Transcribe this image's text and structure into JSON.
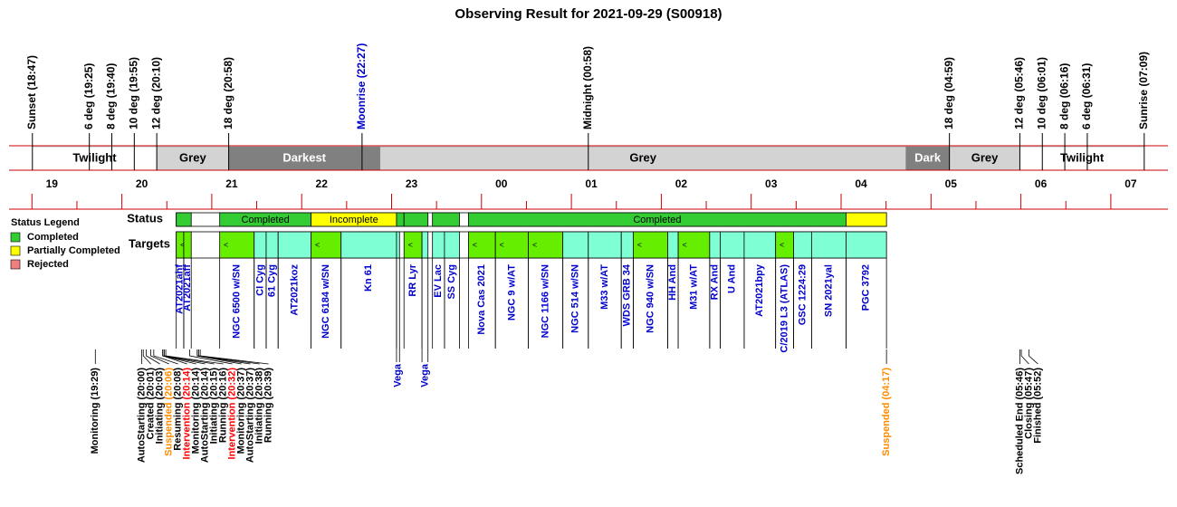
{
  "title": "Observing Result for 2021-09-29 (S00918)",
  "sky_events": [
    {
      "label": "Sunset (18:47)",
      "color": "#000000"
    },
    {
      "label": "6 deg (19:25)",
      "color": "#000000"
    },
    {
      "label": "8 deg (19:40)",
      "color": "#000000"
    },
    {
      "label": "10 deg (19:55)",
      "color": "#000000"
    },
    {
      "label": "12 deg (20:10)",
      "color": "#000000"
    },
    {
      "label": "18 deg (20:58)",
      "color": "#000000"
    },
    {
      "label": "Moonrise (22:27)",
      "color": "#0000cc"
    },
    {
      "label": "Midnight (00:58)",
      "color": "#000000"
    },
    {
      "label": "18 deg (04:59)",
      "color": "#000000"
    },
    {
      "label": "12 deg (05:46)",
      "color": "#000000"
    },
    {
      "label": "10 deg (06:01)",
      "color": "#000000"
    },
    {
      "label": "8 deg (06:16)",
      "color": "#000000"
    },
    {
      "label": "6 deg (06:31)",
      "color": "#000000"
    },
    {
      "label": "Sunrise (07:09)",
      "color": "#000000"
    }
  ],
  "bands": [
    {
      "name": "Twilight",
      "start": "18:47",
      "end": "20:10",
      "color": "#ffffff",
      "text_color": "#000000"
    },
    {
      "name": "Grey",
      "start": "20:10",
      "end": "20:58",
      "color": "#d3d3d3",
      "text_color": "#000000"
    },
    {
      "name": "Darkest",
      "start": "20:58",
      "end": "22:39",
      "color": "#808080",
      "text_color": "#ffffff"
    },
    {
      "name": "Grey",
      "start": "22:39",
      "end": "04:30",
      "color": "#d3d3d3",
      "text_color": "#000000"
    },
    {
      "name": "Dark",
      "start": "04:30",
      "end": "04:59",
      "color": "#808080",
      "text_color": "#ffffff"
    },
    {
      "name": "Grey",
      "start": "04:59",
      "end": "05:46",
      "color": "#d3d3d3",
      "text_color": "#000000"
    },
    {
      "name": "Twilight",
      "start": "05:46",
      "end": "07:09",
      "color": "#ffffff",
      "text_color": "#000000"
    }
  ],
  "hours": [
    "19",
    "20",
    "21",
    "22",
    "23",
    "00",
    "01",
    "02",
    "03",
    "04",
    "05",
    "06",
    "07"
  ],
  "legend": {
    "title": "Status Legend",
    "items": [
      {
        "name": "Completed",
        "color": "#33cc33"
      },
      {
        "name": "Partially Completed",
        "color": "#ffff00"
      },
      {
        "name": "Rejected",
        "color": "#f08080"
      }
    ]
  },
  "rows": {
    "status": "Status",
    "targets": "Targets"
  },
  "status_segments": [
    {
      "start": "20:23",
      "end": "20:33",
      "status": "Completed"
    },
    {
      "start": "20:52",
      "end": "21:53",
      "status": "Completed",
      "label": "Completed"
    },
    {
      "start": "21:53",
      "end": "22:50",
      "status": "Partially Completed",
      "label": "Incomplete"
    },
    {
      "start": "22:50",
      "end": "22:55",
      "status": "Completed"
    },
    {
      "start": "22:55",
      "end": "23:11",
      "status": "Completed"
    },
    {
      "start": "23:14",
      "end": "23:32",
      "status": "Completed"
    },
    {
      "start": "23:38",
      "end": "03:50",
      "status": "Completed",
      "label": "Completed"
    },
    {
      "start": "03:50",
      "end": "04:17",
      "status": "Partially Completed"
    }
  ],
  "targets": [
    {
      "name": "AT2021ahf",
      "start": "20:23",
      "end": "20:28",
      "color": "#66ee00",
      "marker": "<"
    },
    {
      "name": "AT2021aff",
      "start": "20:28",
      "end": "20:33",
      "color": "#66ee00"
    },
    {
      "name": "NGC 6500 w/SN",
      "start": "20:52",
      "end": "21:15",
      "color": "#66ee00",
      "marker": "<"
    },
    {
      "name": "CI Cyg",
      "start": "21:15",
      "end": "21:23",
      "color": "#7fffd4"
    },
    {
      "name": "61 Cyg",
      "start": "21:23",
      "end": "21:31",
      "color": "#7fffd4"
    },
    {
      "name": "AT2021koz",
      "start": "21:31",
      "end": "21:53",
      "color": "#7fffd4"
    },
    {
      "name": "NGC 6184 w/SN",
      "start": "21:53",
      "end": "22:13",
      "color": "#66ee00",
      "marker": "<"
    },
    {
      "name": "Kn 61",
      "start": "22:13",
      "end": "22:50",
      "color": "#7fffd4"
    },
    {
      "name": "Vega",
      "start": "22:50",
      "end": "22:52",
      "color": "#7fffd4"
    },
    {
      "name": "RR Lyr",
      "start": "22:55",
      "end": "23:07",
      "color": "#66ee00",
      "marker": "<"
    },
    {
      "name": "Vega",
      "start": "23:07",
      "end": "23:11",
      "color": "#7fffd4"
    },
    {
      "name": "EV Lac",
      "start": "23:14",
      "end": "23:22",
      "color": "#7fffd4"
    },
    {
      "name": "SS Cyg",
      "start": "23:22",
      "end": "23:32",
      "color": "#7fffd4"
    },
    {
      "name": "Nova Cas 2021",
      "start": "23:38",
      "end": "23:56",
      "color": "#66ee00",
      "marker": "<"
    },
    {
      "name": "NGC 9 w/AT",
      "start": "23:56",
      "end": "00:18",
      "color": "#66ee00",
      "marker": "<"
    },
    {
      "name": "NGC 1166 w/SN",
      "start": "00:18",
      "end": "00:41",
      "color": "#66ee00",
      "marker": "<"
    },
    {
      "name": "NGC 514 w/SN",
      "start": "00:41",
      "end": "00:58",
      "color": "#7fffd4"
    },
    {
      "name": "M33 w/AT",
      "start": "00:58",
      "end": "01:20",
      "color": "#7fffd4"
    },
    {
      "name": "WDS GRB 34",
      "start": "01:20",
      "end": "01:28",
      "color": "#7fffd4"
    },
    {
      "name": "NGC 940 w/SN",
      "start": "01:28",
      "end": "01:51",
      "color": "#66ee00",
      "marker": "<"
    },
    {
      "name": "HH And",
      "start": "01:51",
      "end": "01:58",
      "color": "#7fffd4"
    },
    {
      "name": "M31 w/AT",
      "start": "01:58",
      "end": "02:19",
      "color": "#66ee00",
      "marker": "<"
    },
    {
      "name": "RX And",
      "start": "02:19",
      "end": "02:26",
      "color": "#7fffd4"
    },
    {
      "name": "U And",
      "start": "02:26",
      "end": "02:42",
      "color": "#7fffd4"
    },
    {
      "name": "AT2021bpy",
      "start": "02:42",
      "end": "03:03",
      "color": "#7fffd4"
    },
    {
      "name": "C/2019 L3 (ATLAS)",
      "start": "03:03",
      "end": "03:15",
      "color": "#66ee00",
      "marker": "<"
    },
    {
      "name": "GSC 1224:29",
      "start": "03:15",
      "end": "03:27",
      "color": "#7fffd4"
    },
    {
      "name": "SN 2021yal",
      "start": "03:27",
      "end": "03:50",
      "color": "#7fffd4"
    },
    {
      "name": "PGC 3792",
      "start": "03:50",
      "end": "04:17",
      "color": "#7fffd4"
    }
  ],
  "log_events": [
    {
      "label": "Monitoring (19:29)",
      "color": "#000000"
    },
    {
      "label": "AutoStarting (20:00)",
      "color": "#000000"
    },
    {
      "label": "Created (20:01)",
      "color": "#000000"
    },
    {
      "label": "Initiating (20:03)",
      "color": "#000000"
    },
    {
      "label": "Suspended (20:06)",
      "color": "#ff8c00"
    },
    {
      "label": "Resuming (20:08)",
      "color": "#000000"
    },
    {
      "label": "Intervention (20:14)",
      "color": "#ff0000"
    },
    {
      "label": "Monitoring (20:14)",
      "color": "#000000"
    },
    {
      "label": "AutoStarting (20:14)",
      "color": "#000000"
    },
    {
      "label": "Initiating (20:15)",
      "color": "#000000"
    },
    {
      "label": "Running (20:16)",
      "color": "#000000"
    },
    {
      "label": "Intervention (20:32)",
      "color": "#ff0000"
    },
    {
      "label": "Monitoring (20:37)",
      "color": "#000000"
    },
    {
      "label": "AutoStarting (20:37)",
      "color": "#000000"
    },
    {
      "label": "Initiating (20:38)",
      "color": "#000000"
    },
    {
      "label": "Running (20:39)",
      "color": "#000000"
    },
    {
      "label": "Suspended (04:17)",
      "color": "#ff8c00"
    },
    {
      "label": "Scheduled End (05:46)",
      "color": "#000000"
    },
    {
      "label": "Closing (05:47)",
      "color": "#000000"
    },
    {
      "label": "Finished (05:52)",
      "color": "#000000"
    }
  ]
}
